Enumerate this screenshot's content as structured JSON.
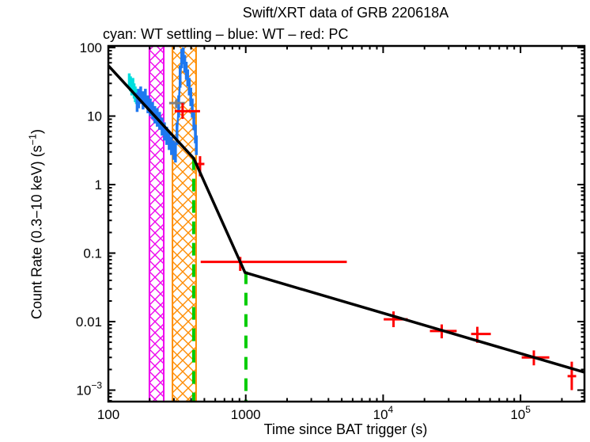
{
  "title": "Swift/XRT data of GRB 220618A",
  "subtitle": "cyan: WT settling – blue: WT – red: PC",
  "axes": {
    "x_label": "Time since BAT trigger (s)",
    "y_label_prefix": "Count Rate (0.3−10 keV) (s",
    "y_label_sup": "−1",
    "y_label_suffix": ")"
  },
  "chart_data": {
    "type": "scatter",
    "title": "Swift/XRT data of GRB 220618A",
    "xlabel": "Time since BAT trigger (s)",
    "ylabel": "Count Rate (0.3-10 keV) (s^-1)",
    "xscale": "log",
    "yscale": "log",
    "xlim": [
      100,
      292000
    ],
    "ylim": [
      0.00068,
      105.6
    ],
    "grid": false,
    "legend_position": "subtitle-top-left",
    "xticks": [
      {
        "v": 100,
        "label": "100"
      },
      {
        "v": 1000,
        "label": "1000"
      },
      {
        "v": 10000,
        "label": "10^4"
      },
      {
        "v": 100000,
        "label": "10^5"
      }
    ],
    "yticks": [
      {
        "v": 100,
        "label": "100"
      },
      {
        "v": 10,
        "label": "10"
      },
      {
        "v": 1,
        "label": "1"
      },
      {
        "v": 0.1,
        "label": "0.1"
      },
      {
        "v": 0.01,
        "label": "0.01"
      },
      {
        "v": 0.001,
        "label": "10^−3"
      }
    ],
    "bands": [
      {
        "name": "wt-interval-band",
        "color": "#ee00ee",
        "t1": 199,
        "t2": 253
      },
      {
        "name": "pc-interval-band",
        "color": "#ff8c00",
        "t1": 293,
        "t2": 435
      }
    ],
    "break_lines": [
      {
        "name": "fit-break-1",
        "t": 418,
        "rate_top": 2.5
      },
      {
        "name": "fit-break-2",
        "t": 1003,
        "rate_top": 0.054
      }
    ],
    "fit_line": {
      "color": "#000000",
      "vertices_t_rate": [
        [
          100.4,
          54
        ],
        [
          418,
          2.42
        ],
        [
          988,
          0.052
        ],
        [
          290000,
          0.00183
        ]
      ]
    },
    "series": [
      {
        "name": "WT settling",
        "color": "#00dede",
        "mode": "trace",
        "points_t_rate_lo_hi": [
          [
            142,
            32,
            25,
            42
          ],
          [
            145,
            29,
            23,
            38
          ],
          [
            148,
            26,
            20,
            34
          ],
          [
            151,
            28,
            22,
            36
          ],
          [
            154,
            24,
            18,
            30
          ],
          [
            157,
            21,
            16,
            27
          ],
          [
            160,
            19,
            15,
            25
          ]
        ]
      },
      {
        "name": "WT",
        "color": "#1e78f0",
        "mode": "trace",
        "points_t_rate_lo_hi": [
          [
            162,
            16,
            11.5,
            22
          ],
          [
            166,
            18,
            13,
            25
          ],
          [
            172,
            20,
            15,
            27
          ],
          [
            179,
            17,
            12.5,
            23
          ],
          [
            186,
            19,
            14,
            25
          ],
          [
            194,
            15,
            11,
            20
          ],
          [
            202,
            13.5,
            10,
            18
          ],
          [
            210,
            12,
            9,
            16
          ],
          [
            218,
            10.5,
            7.8,
            14
          ],
          [
            227,
            9.5,
            7,
            13
          ],
          [
            236,
            8.5,
            6.3,
            11.5
          ],
          [
            246,
            7,
            5.2,
            9.5
          ],
          [
            256,
            6,
            4.4,
            8.1
          ],
          [
            266,
            5.2,
            3.8,
            7
          ],
          [
            277,
            4.4,
            3.2,
            6
          ],
          [
            288,
            3.7,
            2.7,
            5
          ],
          [
            299,
            3.2,
            2.3,
            4.4
          ],
          [
            308,
            3.0,
            2.1,
            4.1
          ]
        ]
      },
      {
        "name": "WT flare",
        "color": "#1e78f0",
        "mode": "trace",
        "points_t_rate_lo_hi": [
          [
            316,
            5.5,
            3.8,
            8
          ],
          [
            325,
            14,
            9.5,
            20
          ],
          [
            333,
            38,
            26,
            55
          ],
          [
            342,
            70,
            50,
            95
          ],
          [
            351,
            78,
            57,
            100
          ],
          [
            360,
            58,
            43,
            78
          ],
          [
            369,
            46,
            34,
            62
          ],
          [
            378,
            36,
            27,
            48
          ],
          [
            388,
            27,
            20,
            36
          ],
          [
            398,
            19,
            14,
            26
          ],
          [
            408,
            13,
            9.5,
            18
          ],
          [
            419,
            8.5,
            6.2,
            11.6
          ],
          [
            430,
            5.5,
            4,
            7.5
          ],
          [
            437,
            3.8,
            2.7,
            5.2
          ]
        ]
      },
      {
        "name": "unreliable",
        "color": "#808080",
        "mode": "cross",
        "points_t_tlo_thi_rate_rlo_rhi": [
          [
            312,
            277,
            361,
            15.5,
            13,
            17.5
          ]
        ]
      },
      {
        "name": "PC",
        "color": "#ff0000",
        "mode": "cross",
        "points_t_tlo_thi_rate_rlo_rhi": [
          [
            347,
            304,
            465,
            11.8,
            9.1,
            15.5
          ],
          [
            465,
            441,
            500,
            2.0,
            1.32,
            2.6
          ],
          [
            912,
            470,
            5440,
            0.0745,
            0.055,
            0.088
          ],
          [
            11900,
            10100,
            15100,
            0.0108,
            0.0083,
            0.0141
          ],
          [
            26700,
            21900,
            34300,
            0.0073,
            0.0057,
            0.0091
          ],
          [
            48500,
            43700,
            60800,
            0.0066,
            0.0049,
            0.0084
          ],
          [
            125000,
            102000,
            162000,
            0.003,
            0.0023,
            0.0038
          ],
          [
            236000,
            220000,
            254000,
            0.0016,
            0.001,
            0.0026
          ]
        ]
      }
    ]
  }
}
